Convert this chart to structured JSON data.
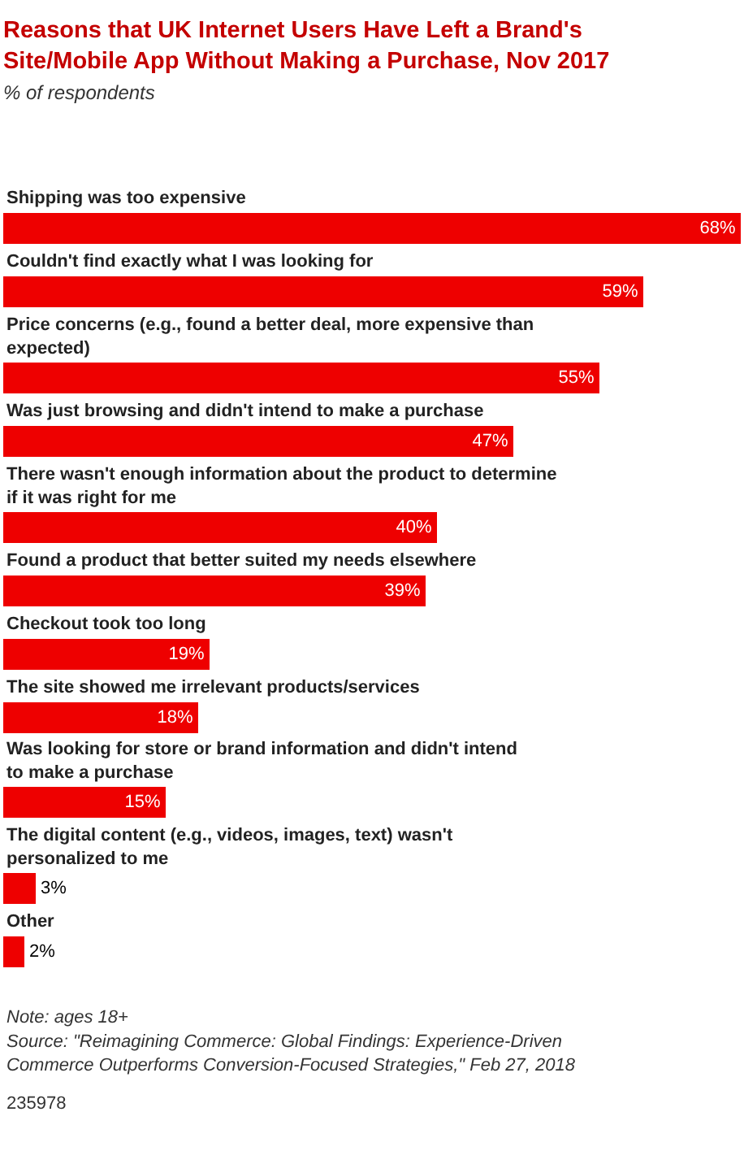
{
  "chart_data": {
    "type": "bar",
    "orientation": "horizontal",
    "xlim": [
      0,
      68
    ],
    "title": "Reasons that UK Internet Users Have Left a Brand's Site/Mobile App Without Making a Purchase, Nov 2017",
    "subtitle": "% of respondents",
    "categories": [
      "Shipping was too expensive",
      "Couldn't find exactly what I was looking for",
      "Price concerns (e.g., found a better deal, more expensive than expected)",
      "Was just browsing and didn't intend to make a purchase",
      "There wasn't enough information about the product to determine if it was right for me",
      "Found a product that better suited my needs elsewhere",
      "Checkout took too long",
      "The site showed me irrelevant products/services",
      "Was looking for store or brand information and didn't intend to make a purchase",
      "The digital content (e.g., videos, images, text) wasn't personalized to me",
      "Other"
    ],
    "values": [
      68,
      59,
      55,
      47,
      40,
      39,
      19,
      18,
      15,
      3,
      2
    ],
    "value_labels": [
      "68%",
      "59%",
      "55%",
      "47%",
      "40%",
      "39%",
      "19%",
      "18%",
      "15%",
      "3%",
      "2%"
    ],
    "color": "#ee0000",
    "annotations": [
      "Note: ages 18+",
      "Source: \"Reimagining Commerce: Global Findings: Experience-Driven Commerce Outperforms Conversion-Focused Strategies,\" Feb 27, 2018",
      "235978"
    ]
  }
}
